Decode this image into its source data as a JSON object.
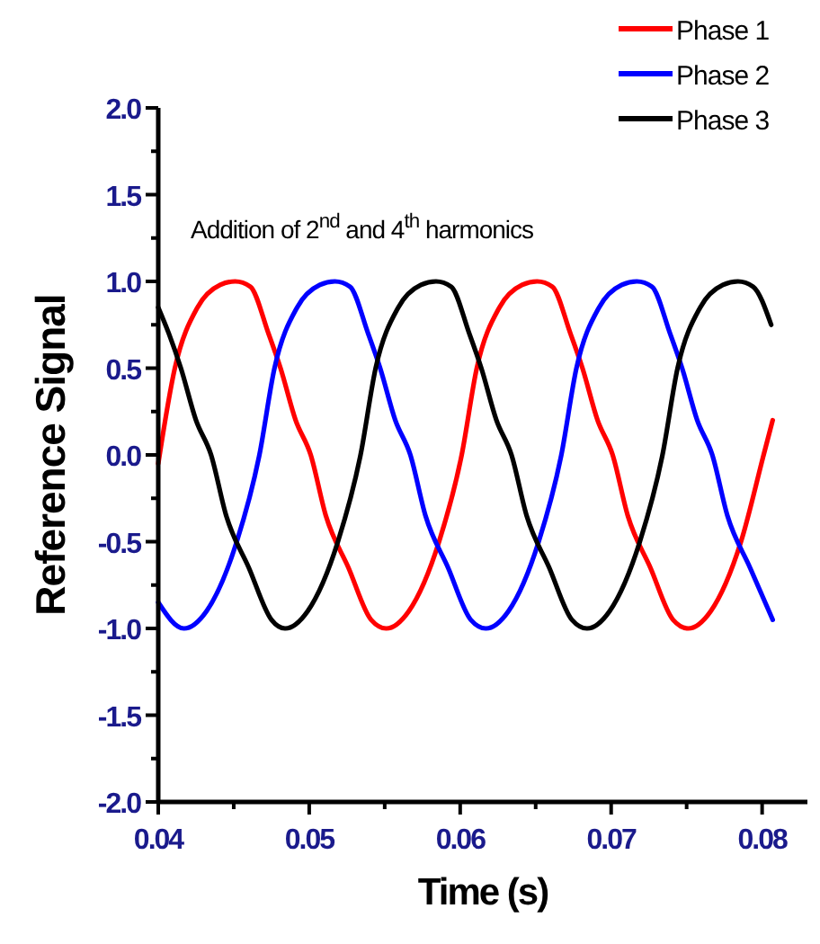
{
  "chart_data": {
    "type": "line",
    "xlabel": "Time (s)",
    "ylabel": "Reference Signal",
    "annotations": [
      "Addition of 2$^{nd}$ and 4$^{th}$ harmonics"
    ],
    "xlim": [
      0.04,
      0.083
    ],
    "ylim": [
      -2,
      2
    ],
    "xticks": [
      0.04,
      {
        "value": 0.045,
        "label": null
      },
      0.05,
      {
        "value": 0.055,
        "label": null
      },
      0.06,
      {
        "value": 0.065,
        "label": null
      },
      0.07,
      {
        "value": 0.075,
        "label": null
      },
      0.08
    ],
    "yticks": [
      {
        "value": -2,
        "label": "-2.0"
      },
      {
        "value": -1.75,
        "label": null
      },
      {
        "value": -1.5,
        "label": "-1.5"
      },
      {
        "value": -1.25,
        "label": null
      },
      {
        "value": -1,
        "label": "-1.0"
      },
      {
        "value": -0.75,
        "label": null
      },
      {
        "value": -0.5,
        "label": "-0.5"
      },
      {
        "value": -0.25,
        "label": null
      },
      {
        "value": 0,
        "label": "0.0"
      },
      {
        "value": 0.25,
        "label": null
      },
      {
        "value": 0.5,
        "label": "0.5"
      },
      {
        "value": 0.75,
        "label": null
      },
      {
        "value": 1,
        "label": "1.0"
      },
      {
        "value": 1.25,
        "label": null
      },
      {
        "value": 1.5,
        "label": "1.5"
      },
      {
        "value": 1.75,
        "label": null
      },
      {
        "value": 2,
        "label": "2.0"
      }
    ],
    "grid": false,
    "legend": "top right",
    "marker": "none",
    "line_style": "solid",
    "series": [
      {
        "name": "Phase 1",
        "color": "#ff0000",
        "x": [
          0.04,
          0.0411,
          0.0426,
          0.0441,
          0.0451,
          0.0461,
          0.0473,
          0.0481,
          0.0491,
          0.0501,
          0.0511,
          0.0526,
          0.0541,
          0.0551,
          0.0566,
          0.0586,
          0.0601,
          0.0611,
          0.0626,
          0.0641,
          0.0651,
          0.0661,
          0.0673,
          0.0681,
          0.0691,
          0.0701,
          0.0711,
          0.0726,
          0.0741,
          0.0751,
          0.0766,
          0.0786,
          0.0801,
          0.0807
        ],
        "values": [
          -0.05,
          0.5,
          0.85,
          0.98,
          1.0,
          0.97,
          0.7,
          0.5,
          0.2,
          0.0,
          -0.35,
          -0.65,
          -0.95,
          -1.0,
          -0.9,
          -0.5,
          0.0,
          0.5,
          0.85,
          0.98,
          1.0,
          0.97,
          0.7,
          0.5,
          0.2,
          0.0,
          -0.35,
          -0.65,
          -0.95,
          -1.0,
          -0.9,
          -0.5,
          0.0,
          0.2
        ]
      },
      {
        "name": "Phase 2",
        "color": "#0000ff",
        "x": [
          0.04,
          0.0417,
          0.0432,
          0.0452,
          0.0467,
          0.0477,
          0.0492,
          0.0507,
          0.0517,
          0.0527,
          0.0539,
          0.0547,
          0.0557,
          0.0567,
          0.0577,
          0.0592,
          0.0607,
          0.0617,
          0.0632,
          0.0652,
          0.0667,
          0.0677,
          0.0692,
          0.0707,
          0.0717,
          0.0727,
          0.0739,
          0.0747,
          0.0757,
          0.0767,
          0.0777,
          0.0792,
          0.0807
        ],
        "values": [
          -0.85,
          -1.0,
          -0.9,
          -0.5,
          0.0,
          0.5,
          0.85,
          0.98,
          1.0,
          0.97,
          0.7,
          0.5,
          0.2,
          0.0,
          -0.35,
          -0.65,
          -0.95,
          -1.0,
          -0.9,
          -0.5,
          0.0,
          0.5,
          0.85,
          0.98,
          1.0,
          0.97,
          0.7,
          0.5,
          0.2,
          0.0,
          -0.35,
          -0.65,
          -0.95
        ]
      },
      {
        "name": "Phase 3",
        "color": "#000000",
        "x": [
          0.04,
          0.0407,
          0.0415,
          0.0425,
          0.0435,
          0.0445,
          0.046,
          0.0475,
          0.0484,
          0.0499,
          0.0519,
          0.0534,
          0.0544,
          0.0559,
          0.0574,
          0.0584,
          0.0594,
          0.0606,
          0.0614,
          0.0624,
          0.0634,
          0.0644,
          0.0659,
          0.0674,
          0.0684,
          0.0699,
          0.0719,
          0.0734,
          0.0744,
          0.0759,
          0.0774,
          0.0784,
          0.0794,
          0.0806
        ],
        "values": [
          0.85,
          0.7,
          0.5,
          0.2,
          0.0,
          -0.35,
          -0.65,
          -0.95,
          -1.0,
          -0.9,
          -0.5,
          0.0,
          0.5,
          0.85,
          0.98,
          1.0,
          0.97,
          0.7,
          0.5,
          0.2,
          0.0,
          -0.35,
          -0.65,
          -0.95,
          -1.0,
          -0.9,
          -0.5,
          0.0,
          0.5,
          0.85,
          0.98,
          1.0,
          0.97,
          0.75
        ]
      }
    ]
  }
}
